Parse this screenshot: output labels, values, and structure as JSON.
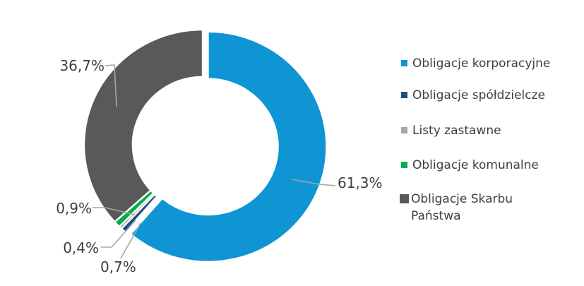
{
  "chart_data": {
    "type": "pie",
    "subtype": "donut",
    "title": "",
    "unit": "%",
    "categories": [
      "Obligacje korporacyjne",
      "Obligacje spółdzielcze",
      "Listy zastawne",
      "Obligacje komunalne",
      "Obligacje Skarbu Państwa"
    ],
    "values": [
      61.3,
      0.7,
      0.4,
      0.9,
      36.7
    ],
    "labels": [
      "61,3%",
      "0,7%",
      "0,4%",
      "0,9%",
      "36,7%"
    ],
    "colors": [
      "#0F94D4",
      "#1F4E79",
      "#A6A6A6",
      "#00AE4D",
      "#595959"
    ],
    "start_angle_deg": 0,
    "direction": "clockwise",
    "hole_ratio": 0.59,
    "exploded_index": 0,
    "slice_border_color": "#FFFFFF",
    "leader_line_color": "#A6A6A6",
    "label_color": "#3F3F3F",
    "background": "#FFFFFF",
    "legend_position": "right"
  },
  "legend": {
    "items": [
      {
        "label": "Obligacje korporacyjne",
        "color": "#0F94D4"
      },
      {
        "label": "Obligacje spółdzielcze",
        "color": "#1F4E79"
      },
      {
        "label": "Listy zastawne",
        "color": "#A6A6A6"
      },
      {
        "label": "Obligacje komunalne",
        "color": "#00AE4D"
      },
      {
        "label": "Obligacje Skarbu Państwa",
        "color": "#595959"
      }
    ]
  }
}
